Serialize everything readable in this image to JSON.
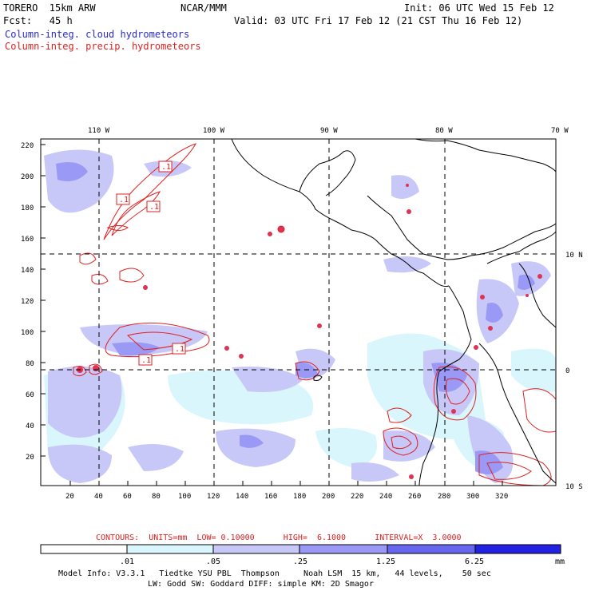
{
  "header": {
    "model": "TORERO  15km ARW",
    "org": "NCAR/MMM",
    "init": "Init: 06 UTC Wed 15 Feb 12",
    "fcst": "Fcst:   45 h",
    "valid": "Valid: 03 UTC Fri 17 Feb 12 (21 CST Thu 16 Feb 12)",
    "field1": "Column-integ. cloud hydrometeors",
    "field2": "Column-integ. precip. hydrometeors"
  },
  "map": {
    "top_lon_labels": [
      "110 W",
      "100 W",
      "90 W",
      "80 W",
      "70 W"
    ],
    "right_lat_labels": [
      "10 N",
      "0",
      "10 S"
    ],
    "left_y_ticks": [
      "220",
      "200",
      "180",
      "160",
      "140",
      "120",
      "100",
      "80",
      "60",
      "40",
      "20"
    ],
    "bottom_x_ticks": [
      "20",
      "40",
      "60",
      "80",
      "100",
      "120",
      "140",
      "160",
      "180",
      "200",
      "220",
      "240",
      "260",
      "280",
      "300",
      "320"
    ],
    "contour_labels": [
      ".1",
      ".1",
      ".1",
      ".1",
      ".1",
      ".1"
    ]
  },
  "contours_info": "CONTOURS:  UNITS=mm  LOW= 0.10000      HIGH=  6.1000      INTERVAL=X  3.0000",
  "legend": {
    "ticks": [
      ".01",
      ".05",
      ".25",
      "1.25",
      "6.25"
    ],
    "unit": "mm",
    "colors": [
      "#ffffff",
      "#d8f6fb",
      "#c8c8f8",
      "#9a9af6",
      "#6666ee",
      "#3a3ae6",
      "#1010e0"
    ]
  },
  "footer": {
    "line1": "Model Info: V3.3.1   Tiedtke YSU PBL  Thompson     Noah LSM  15 km,   44 levels,    50 sec",
    "line2": "LW: Godd SW: Goddard DIFF: simple KM: 2D Smagor"
  }
}
